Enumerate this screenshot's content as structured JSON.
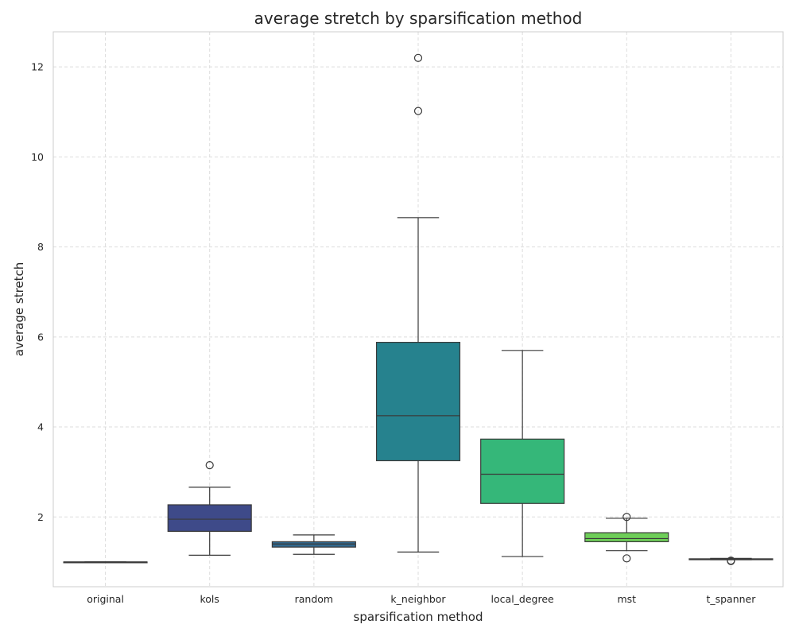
{
  "chart_data": {
    "type": "box",
    "title": "average stretch by sparsification method",
    "xlabel": "sparsification method",
    "ylabel": "average stretch",
    "ylim": [
      0.45,
      12.78
    ],
    "yticks": [
      2,
      4,
      6,
      8,
      10,
      12
    ],
    "grid": true,
    "categories": [
      "original",
      "kols",
      "random",
      "k_neighbor",
      "local_degree",
      "mst",
      "t_spanner"
    ],
    "boxes": [
      {
        "name": "original",
        "whisker_low": 1.0,
        "q1": 1.0,
        "median": 1.0,
        "q3": 1.0,
        "whisker_high": 1.0,
        "outliers": [],
        "color": "#482878"
      },
      {
        "name": "kols",
        "whisker_low": 1.15,
        "q1": 1.68,
        "median": 1.95,
        "q3": 2.27,
        "whisker_high": 2.66,
        "outliers": [
          3.15
        ],
        "color": "#3e4a89"
      },
      {
        "name": "random",
        "whisker_low": 1.17,
        "q1": 1.33,
        "median": 1.4,
        "q3": 1.45,
        "whisker_high": 1.6,
        "outliers": [],
        "color": "#31688e"
      },
      {
        "name": "k_neighbor",
        "whisker_low": 1.22,
        "q1": 3.25,
        "median": 4.25,
        "q3": 5.88,
        "whisker_high": 8.65,
        "outliers": [
          11.02,
          12.2
        ],
        "color": "#26828e"
      },
      {
        "name": "local_degree",
        "whisker_low": 1.12,
        "q1": 2.3,
        "median": 2.95,
        "q3": 3.73,
        "whisker_high": 5.7,
        "outliers": [],
        "color": "#35b779"
      },
      {
        "name": "mst",
        "whisker_low": 1.25,
        "q1": 1.45,
        "median": 1.52,
        "q3": 1.65,
        "whisker_high": 1.97,
        "outliers": [
          2.0,
          1.08
        ],
        "color": "#6ece58"
      },
      {
        "name": "t_spanner",
        "whisker_low": 1.05,
        "q1": 1.05,
        "median": 1.06,
        "q3": 1.07,
        "whisker_high": 1.08,
        "outliers": [
          1.02,
          1.03
        ],
        "color": "#b5de2b"
      }
    ]
  }
}
